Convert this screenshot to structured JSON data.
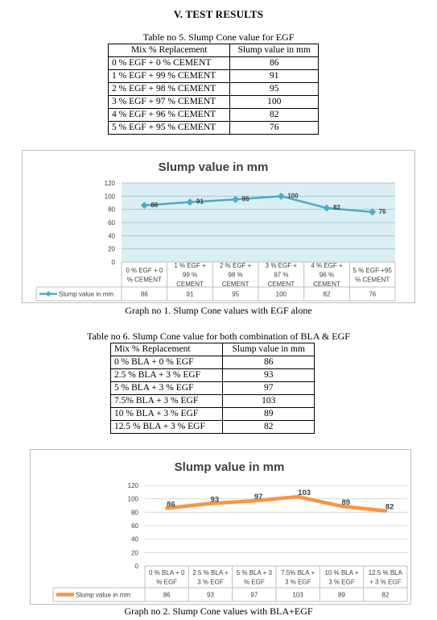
{
  "section_title": "V.  TEST RESULTS",
  "table1": {
    "caption": "Table no 5. Slump Cone value for EGF",
    "headers": [
      "Mix % Replacement",
      "Slump value in mm"
    ],
    "rows": [
      [
        "0 % EGF + 0 %  CEMENT",
        "86"
      ],
      [
        "1 % EGF + 99 %  CEMENT",
        "91"
      ],
      [
        "2 % EGF + 98 %  CEMENT",
        "95"
      ],
      [
        "3 % EGF + 97 %  CEMENT",
        "100"
      ],
      [
        "4 % EGF + 96 %  CEMENT",
        "82"
      ],
      [
        "5 % EGF + 95 %  CEMENT",
        "76"
      ]
    ]
  },
  "graph1_caption": "Graph no 1.  Slump Cone values with EGF alone",
  "table2": {
    "caption": "Table no 6. Slump Cone value for both combination of BLA & EGF",
    "headers": [
      "Mix % Replacement",
      "Slump value in mm"
    ],
    "rows": [
      [
        "0 % BLA + 0 % EGF",
        "86"
      ],
      [
        "2.5 % BLA + 3 % EGF",
        "93"
      ],
      [
        "5 % BLA + 3 % EGF",
        "97"
      ],
      [
        "7.5% BLA + 3 % EGF",
        "103"
      ],
      [
        "10 % BLA + 3 % EGF",
        "89"
      ],
      [
        "12.5 % BLA + 3 % EGF",
        "82"
      ]
    ]
  },
  "graph2_caption": "Graph no 2. Slump Cone values with BLA+EGF",
  "colors": {
    "series1": "#4bacc6",
    "series2": "#f79646",
    "plot_bg1": "#dbeef3",
    "grid": "#d9d9d9"
  },
  "chart_data": [
    {
      "type": "line",
      "title": "Slump value in mm",
      "categories": [
        [
          "0 % EGF + 0",
          "% CEMENT"
        ],
        [
          "1 % EGF +",
          "99 %",
          "CEMENT"
        ],
        [
          "2 % EGF +",
          "98 %",
          "CEMENT"
        ],
        [
          "3 % EGF +",
          "97 %",
          "CEMENT"
        ],
        [
          "4 % EGF +",
          "96 %",
          "CEMENT"
        ],
        [
          "5 % EGF +95",
          "% CEMENT"
        ]
      ],
      "series": [
        {
          "name": "Slump value in mm",
          "values": [
            86,
            91,
            95,
            100,
            82,
            76
          ]
        }
      ],
      "yticks": [
        "0",
        "20",
        "40",
        "60",
        "80",
        "100",
        "120"
      ],
      "ylim": [
        0,
        120
      ],
      "legend": "data-table-bottom"
    },
    {
      "type": "line",
      "title": "Slump value in mm",
      "categories": [
        [
          "0 % BLA + 0",
          "% EGF"
        ],
        [
          "2.5 % BLA +",
          "3 % EGF"
        ],
        [
          "5 % BLA + 3",
          "% EGF"
        ],
        [
          "7.5% BLA +",
          "3 % EGF"
        ],
        [
          "10 % BLA +",
          "3 % EGF"
        ],
        [
          "12.5 % BLA",
          "+ 3 % EGF"
        ]
      ],
      "series": [
        {
          "name": "Slump value in mm",
          "values": [
            86,
            93,
            97,
            103,
            89,
            82
          ]
        }
      ],
      "yticks": [
        "0",
        "20",
        "40",
        "60",
        "80",
        "100",
        "120"
      ],
      "ylim": [
        0,
        120
      ],
      "legend": "data-table-bottom"
    }
  ]
}
